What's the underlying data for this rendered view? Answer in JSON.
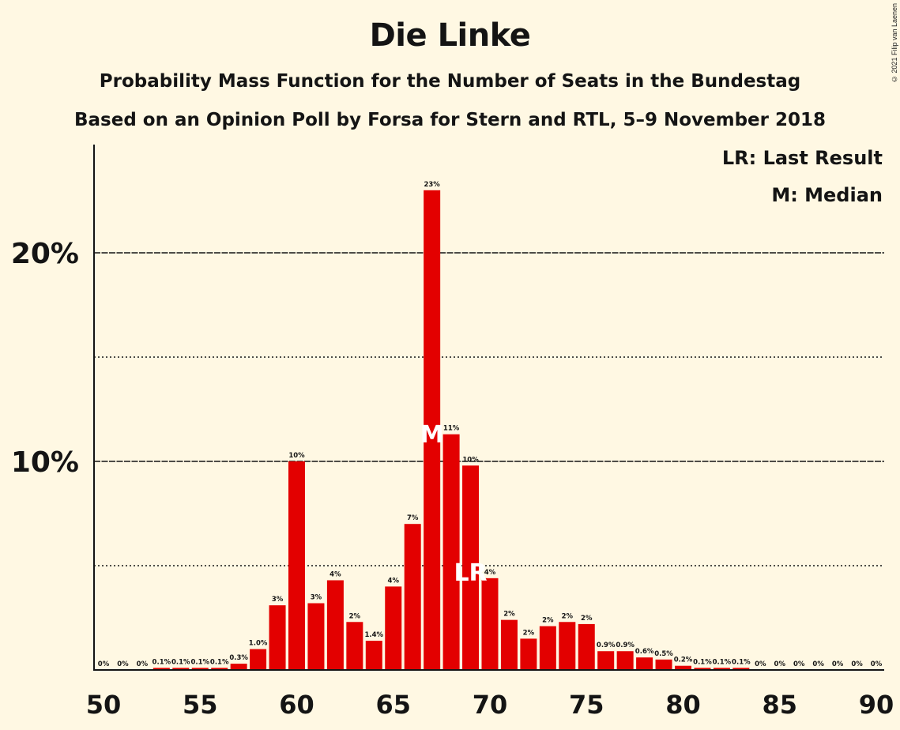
{
  "title": "Die Linke",
  "subtitle": "Probability Mass Function for the Number of Seats in the Bundestag",
  "subtitle2": "Based on an Opinion Poll by Forsa for Stern and RTL, 5–9 November 2018",
  "copyright": "© 2021 Filip van Laenen",
  "legend": {
    "last_result": "LR: Last Result",
    "median": "M: Median"
  },
  "colors": {
    "bar": "#e30000",
    "background": "#fff8e3",
    "text": "#141414",
    "marker_text": "#ffffff"
  },
  "chart_data": {
    "type": "bar",
    "title": "Die Linke",
    "xlabel": "",
    "ylabel": "",
    "x": [
      50,
      51,
      52,
      53,
      54,
      55,
      56,
      57,
      58,
      59,
      60,
      61,
      62,
      63,
      64,
      65,
      66,
      67,
      68,
      69,
      70,
      71,
      72,
      73,
      74,
      75,
      76,
      77,
      78,
      79,
      80,
      81,
      82,
      83,
      84,
      85,
      86,
      87,
      88,
      89,
      90
    ],
    "values": [
      0,
      0,
      0,
      0.1,
      0.1,
      0.1,
      0.1,
      0.3,
      1.0,
      3.1,
      10.0,
      3.2,
      4.3,
      2.3,
      1.4,
      4.0,
      7.0,
      23.0,
      11.3,
      9.8,
      4.4,
      2.4,
      1.5,
      2.1,
      2.3,
      2.2,
      0.9,
      0.9,
      0.6,
      0.5,
      0.2,
      0.1,
      0.1,
      0.1,
      0,
      0,
      0,
      0,
      0,
      0,
      0
    ],
    "labels": [
      "0%",
      "0%",
      "0%",
      "0.1%",
      "0.1%",
      "0.1%",
      "0.1%",
      "0.3%",
      "1.0%",
      "3%",
      "10%",
      "3%",
      "4%",
      "2%",
      "1.4%",
      "4%",
      "7%",
      "23%",
      "11%",
      "10%",
      "4%",
      "2%",
      "2%",
      "2%",
      "2%",
      "2%",
      "0.9%",
      "0.9%",
      "0.6%",
      "0.5%",
      "0.2%",
      "0.1%",
      "0.1%",
      "0.1%",
      "0%",
      "0%",
      "0%",
      "0%",
      "0%",
      "0%",
      "0%"
    ],
    "x_ticks": [
      "50",
      "55",
      "60",
      "65",
      "70",
      "75",
      "80",
      "85",
      "90"
    ],
    "y_ticks": [
      "10%",
      "20%"
    ],
    "y_tick_values": [
      10,
      20
    ],
    "dotted_gridlines": [
      5,
      15
    ],
    "solid_gridlines": [
      10,
      20
    ],
    "ylim": [
      0,
      25
    ],
    "xlim": [
      50,
      90
    ],
    "median": {
      "seat": 67,
      "label": "M"
    },
    "last_result": {
      "seat": 69,
      "label": "LR"
    },
    "legend_position": "top-right"
  }
}
